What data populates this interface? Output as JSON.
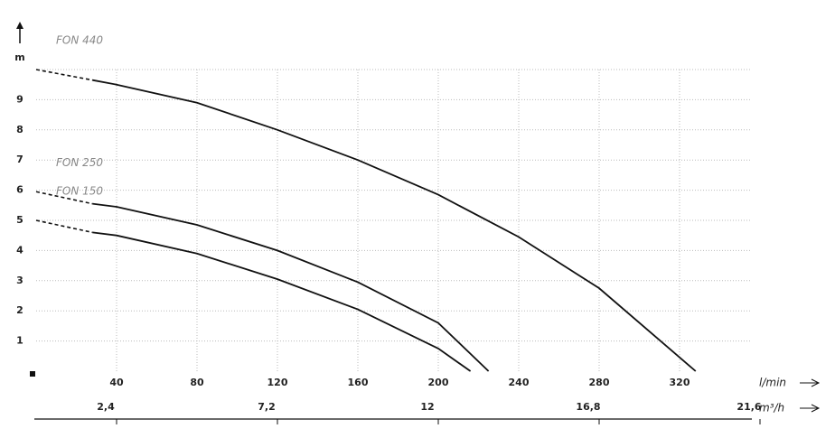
{
  "chart_data": {
    "type": "line",
    "y_label": "m",
    "x_label": "l/min",
    "x2_label": "m³/h",
    "xlim": [
      0,
      360
    ],
    "xticks": [
      40,
      80,
      120,
      160,
      200,
      240,
      280,
      320
    ],
    "x2lim": [
      0,
      21.6
    ],
    "x2ticks": [
      {
        "value": 2.4,
        "label": "2,4"
      },
      {
        "value": 7.2,
        "label": "7,2"
      },
      {
        "value": 12,
        "label": "12"
      },
      {
        "value": 16.8,
        "label": "16,8"
      },
      {
        "value": 21.6,
        "label": "21,6"
      }
    ],
    "ylim": [
      0,
      10
    ],
    "yticks": [
      1,
      2,
      3,
      4,
      5,
      6,
      7,
      8,
      9
    ],
    "grid": true,
    "series": [
      {
        "name": "FON 440",
        "color": "#111111",
        "x": [
          0,
          28,
          40,
          80,
          120,
          160,
          200,
          240,
          280,
          328
        ],
        "values": [
          10,
          9.65,
          9.5,
          8.9,
          8.0,
          7.0,
          5.85,
          4.45,
          2.75,
          0
        ]
      },
      {
        "name": "FON 250",
        "color": "#111111",
        "x": [
          0,
          28,
          40,
          80,
          120,
          160,
          200,
          225
        ],
        "values": [
          5.95,
          5.55,
          5.45,
          4.85,
          4.0,
          2.95,
          1.6,
          0
        ]
      },
      {
        "name": "FON 150",
        "color": "#111111",
        "x": [
          0,
          28,
          40,
          80,
          120,
          160,
          200,
          216
        ],
        "values": [
          5.0,
          4.6,
          4.5,
          3.9,
          3.05,
          2.05,
          0.75,
          0
        ]
      }
    ]
  }
}
